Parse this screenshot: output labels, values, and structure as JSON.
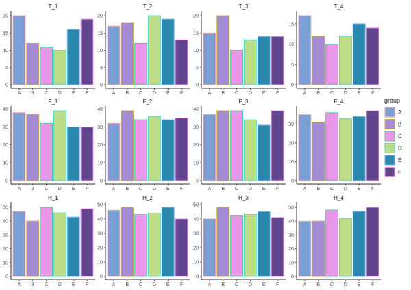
{
  "chart_data": {
    "type": "bar",
    "layout": "facet 3x4, free y scales",
    "categories": [
      "A",
      "B",
      "C",
      "D",
      "E",
      "F"
    ],
    "legend": {
      "title": "group",
      "position": "right",
      "entries": [
        "A",
        "B",
        "C",
        "D",
        "E",
        "F"
      ]
    },
    "fill_colors": [
      "#7b9fd4",
      "#a58ad4",
      "#ea97ea",
      "#bcdd87",
      "#2b89b0",
      "#62458f"
    ],
    "outline_colors": [
      "#f4a3a3",
      "#c9a843",
      "#4ec58f",
      "#4fd8d0",
      "#6fb4f0",
      "#f08ef0"
    ],
    "grid": false,
    "panels": [
      {
        "title": "T_1",
        "values": [
          20,
          12,
          11,
          10,
          16,
          19
        ],
        "yticks": [
          0,
          5,
          10,
          15,
          20
        ]
      },
      {
        "title": "T_2",
        "values": [
          17,
          18,
          12,
          20,
          19,
          13
        ],
        "yticks": [
          0,
          5,
          10,
          15,
          20
        ]
      },
      {
        "title": "T_3",
        "values": [
          15,
          20,
          10,
          13,
          14,
          14
        ],
        "yticks": [
          0,
          5,
          10,
          15,
          20
        ]
      },
      {
        "title": "T_4",
        "values": [
          17,
          12,
          10,
          12,
          15,
          14
        ],
        "yticks": [
          0,
          5,
          10,
          15
        ]
      },
      {
        "title": "F_1",
        "values": [
          38,
          37,
          32,
          39,
          30,
          30
        ],
        "yticks": [
          0,
          10,
          20,
          30,
          40
        ]
      },
      {
        "title": "F_2",
        "values": [
          32,
          39,
          34,
          36,
          34,
          35
        ],
        "yticks": [
          0,
          10,
          20,
          30,
          40
        ]
      },
      {
        "title": "F_3",
        "values": [
          37,
          39,
          39,
          34,
          31,
          39
        ],
        "yticks": [
          0,
          10,
          20,
          30,
          40
        ]
      },
      {
        "title": "F_4",
        "values": [
          35,
          31,
          36,
          33,
          34,
          37
        ],
        "yticks": [
          0,
          10,
          20,
          30
        ]
      },
      {
        "title": "H_1",
        "values": [
          47,
          40,
          50,
          46,
          43,
          49
        ],
        "yticks": [
          0,
          10,
          20,
          30,
          40,
          50
        ]
      },
      {
        "title": "H_2",
        "values": [
          46,
          48,
          43,
          44,
          48,
          40
        ],
        "yticks": [
          0,
          10,
          20,
          30,
          40,
          50
        ]
      },
      {
        "title": "H_3",
        "values": [
          40,
          48,
          42,
          43,
          45,
          41
        ],
        "yticks": [
          0,
          10,
          20,
          30,
          40,
          50
        ]
      },
      {
        "title": "H_4",
        "values": [
          40,
          40,
          48,
          42,
          47,
          50
        ],
        "yticks": [
          0,
          10,
          20,
          30,
          40,
          50
        ]
      }
    ]
  }
}
